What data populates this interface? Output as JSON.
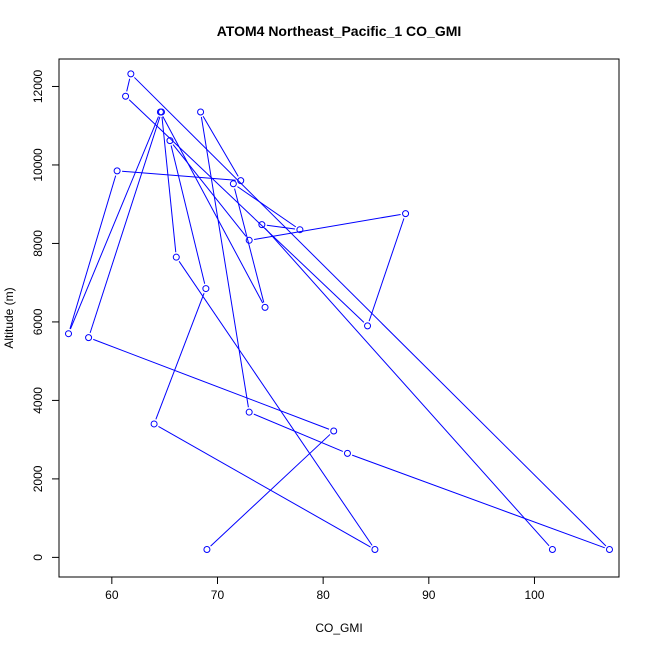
{
  "chart_data": {
    "type": "line",
    "title": "ATOM4 Northeast_Pacific_1 CO_GMI",
    "xlabel": "CO_GMI",
    "ylabel": "Altitude (m)",
    "xlim": [
      55,
      108
    ],
    "ylim": [
      -500,
      12700
    ],
    "xticks": [
      60,
      70,
      80,
      90,
      100
    ],
    "yticks": [
      0,
      2000,
      4000,
      6000,
      8000,
      10000,
      12000
    ],
    "line_color": "#0000ff",
    "marker": "open-circle",
    "series": [
      {
        "points": [
          [
            69.0,
            200
          ],
          [
            81.0,
            3220
          ],
          [
            57.8,
            5600
          ],
          [
            64.7,
            11350
          ],
          [
            66.1,
            7650
          ],
          [
            84.9,
            200
          ],
          [
            64.0,
            3400
          ],
          [
            68.9,
            6850
          ],
          [
            65.5,
            10620
          ],
          [
            73.0,
            8080
          ],
          [
            87.8,
            8760
          ],
          [
            84.2,
            5900
          ],
          [
            61.3,
            11750
          ],
          [
            61.8,
            12320
          ],
          [
            107.1,
            200
          ],
          [
            82.3,
            2650
          ],
          [
            73.0,
            3700
          ],
          [
            68.4,
            11350
          ],
          [
            72.2,
            9600
          ],
          [
            60.5,
            9850
          ],
          [
            55.9,
            5700
          ],
          [
            64.6,
            11350
          ],
          [
            74.5,
            6370
          ],
          [
            71.5,
            9520
          ],
          [
            77.8,
            8350
          ],
          [
            74.2,
            8480
          ],
          [
            101.7,
            200
          ]
        ]
      }
    ]
  }
}
